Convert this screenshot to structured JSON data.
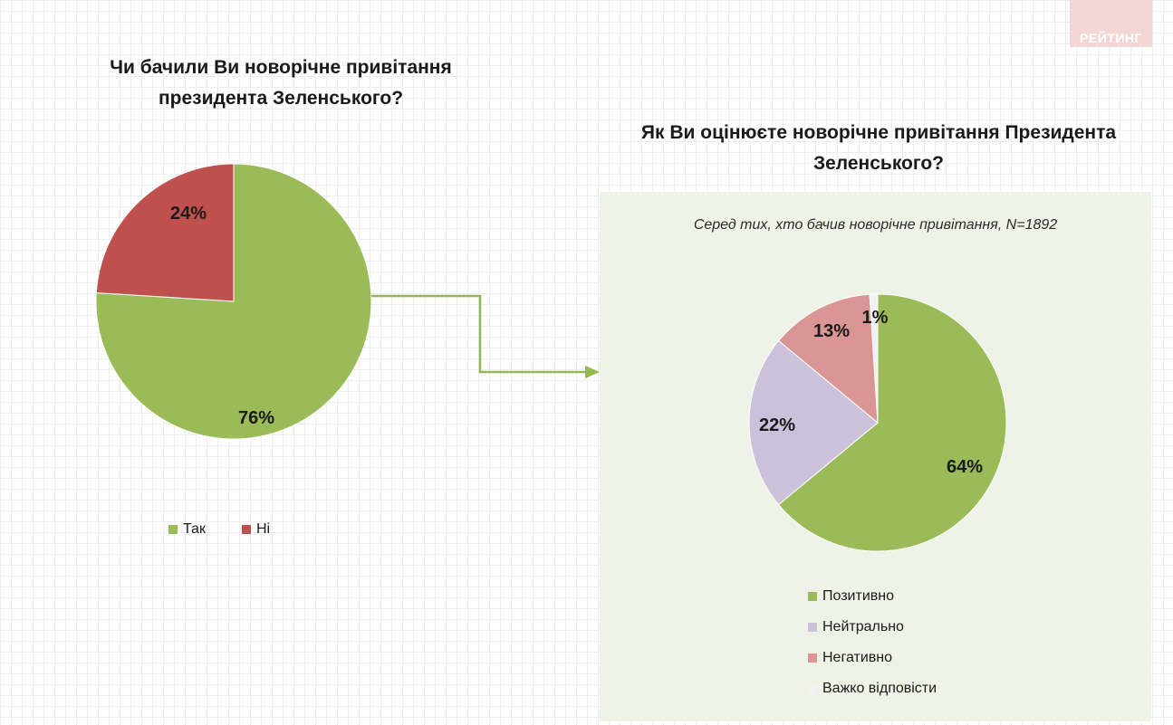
{
  "logo_text": "РЕЙТИНГ",
  "chart_data": [
    {
      "type": "pie",
      "title": "Чи бачили Ви новорічне привітання президента Зеленського?",
      "categories": [
        "Так",
        "Ні"
      ],
      "values": [
        76,
        24
      ],
      "labels": [
        "76%",
        "24%"
      ],
      "colors": [
        "#9bbb59",
        "#c0504d"
      ],
      "legend": "bottom"
    },
    {
      "type": "pie",
      "title": "Як Ви оцінюєте новорічне привітання Президента Зеленського?",
      "subtitle": "Серед тих, хто бачив новорічне привітання, N=1892",
      "categories": [
        "Позитивно",
        "Нейтрально",
        "Негативно",
        "Важко відповісти"
      ],
      "values": [
        64,
        22,
        13,
        1
      ],
      "labels": [
        "64%",
        "22%",
        "13%",
        "1%"
      ],
      "colors": [
        "#9bbb59",
        "#ccc1da",
        "#d99694",
        "#f2f2f2"
      ],
      "legend": "bottom"
    }
  ]
}
